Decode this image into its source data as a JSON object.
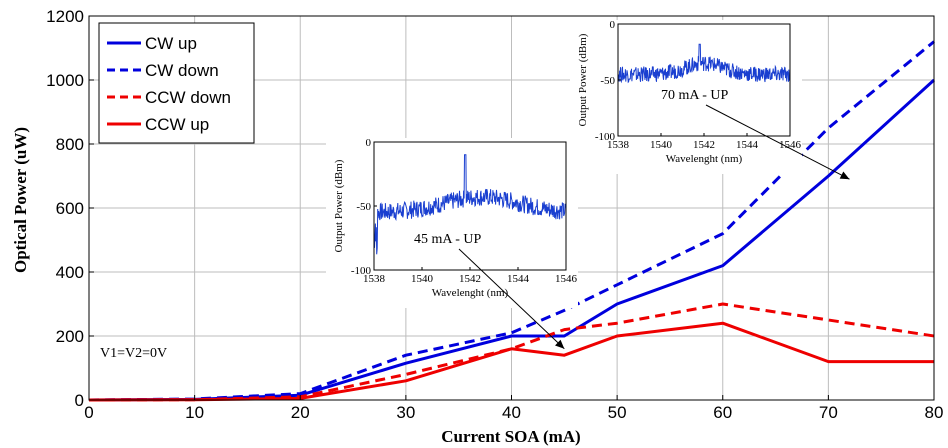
{
  "chart_data": {
    "type": "line",
    "title": "",
    "xlabel": "Current SOA (mA)",
    "ylabel": "Optical Power (uW)",
    "xlim": [
      0,
      80
    ],
    "ylim": [
      0,
      1200
    ],
    "x_ticks": [
      "0",
      "10",
      "20",
      "30",
      "40",
      "50",
      "60",
      "70",
      "80"
    ],
    "y_ticks": [
      "0",
      "200",
      "400",
      "600",
      "800",
      "1000",
      "1200"
    ],
    "grid": true,
    "legend_position": "top-left",
    "series": [
      {
        "name": "CW up",
        "color": "#0000dd",
        "dash": "solid",
        "x": [
          0,
          10,
          20,
          30,
          40,
          45,
          50,
          60,
          70,
          80
        ],
        "y": [
          0,
          2,
          15,
          115,
          200,
          200,
          300,
          420,
          700,
          1000
        ]
      },
      {
        "name": "CW down",
        "color": "#0000dd",
        "dash": "dashed",
        "x": [
          0,
          10,
          20,
          30,
          40,
          45,
          50,
          60,
          70,
          80
        ],
        "y": [
          0,
          3,
          20,
          140,
          210,
          280,
          360,
          520,
          850,
          1120
        ]
      },
      {
        "name": "CCW down",
        "color": "#ee0000",
        "dash": "dashed",
        "x": [
          0,
          10,
          20,
          30,
          40,
          45,
          50,
          60,
          70,
          80
        ],
        "y": [
          0,
          1,
          10,
          80,
          160,
          220,
          240,
          300,
          250,
          200
        ]
      },
      {
        "name": "CCW up",
        "color": "#ee0000",
        "dash": "solid",
        "x": [
          0,
          10,
          20,
          30,
          40,
          45,
          50,
          60,
          70,
          80
        ],
        "y": [
          0,
          1,
          5,
          60,
          160,
          140,
          200,
          240,
          120,
          120
        ]
      }
    ],
    "annotation": "V1=V2=0V",
    "insets": [
      {
        "label": "45 mA - UP",
        "xlabel": "Wavelenght (nm)",
        "ylabel": "Output Power (dBm)",
        "xlim": [
          1538,
          1546
        ],
        "ylim": [
          -100,
          0
        ],
        "x_ticks": [
          "1538",
          "1540",
          "1542",
          "1544",
          "1546"
        ],
        "y_ticks": [
          "0",
          "-50",
          "-100"
        ],
        "arrow_target": {
          "x": 45,
          "y": 160
        },
        "spectrum": {
          "base_dbm": -55,
          "peak_wavelength": 1541.8,
          "peak_dbm": -10
        }
      },
      {
        "label": "70 mA - UP",
        "xlabel": "Wavelenght (nm)",
        "ylabel": "Output Power (dBm)",
        "xlim": [
          1538,
          1546
        ],
        "ylim": [
          -100,
          0
        ],
        "x_ticks": [
          "1538",
          "1540",
          "1542",
          "1544",
          "1546"
        ],
        "y_ticks": [
          "0",
          "-50",
          "-100"
        ],
        "arrow_target": {
          "x": 72,
          "y": 690
        },
        "spectrum": {
          "base_dbm": -45,
          "peak_wavelength": 1541.8,
          "peak_dbm": -18
        }
      }
    ]
  }
}
